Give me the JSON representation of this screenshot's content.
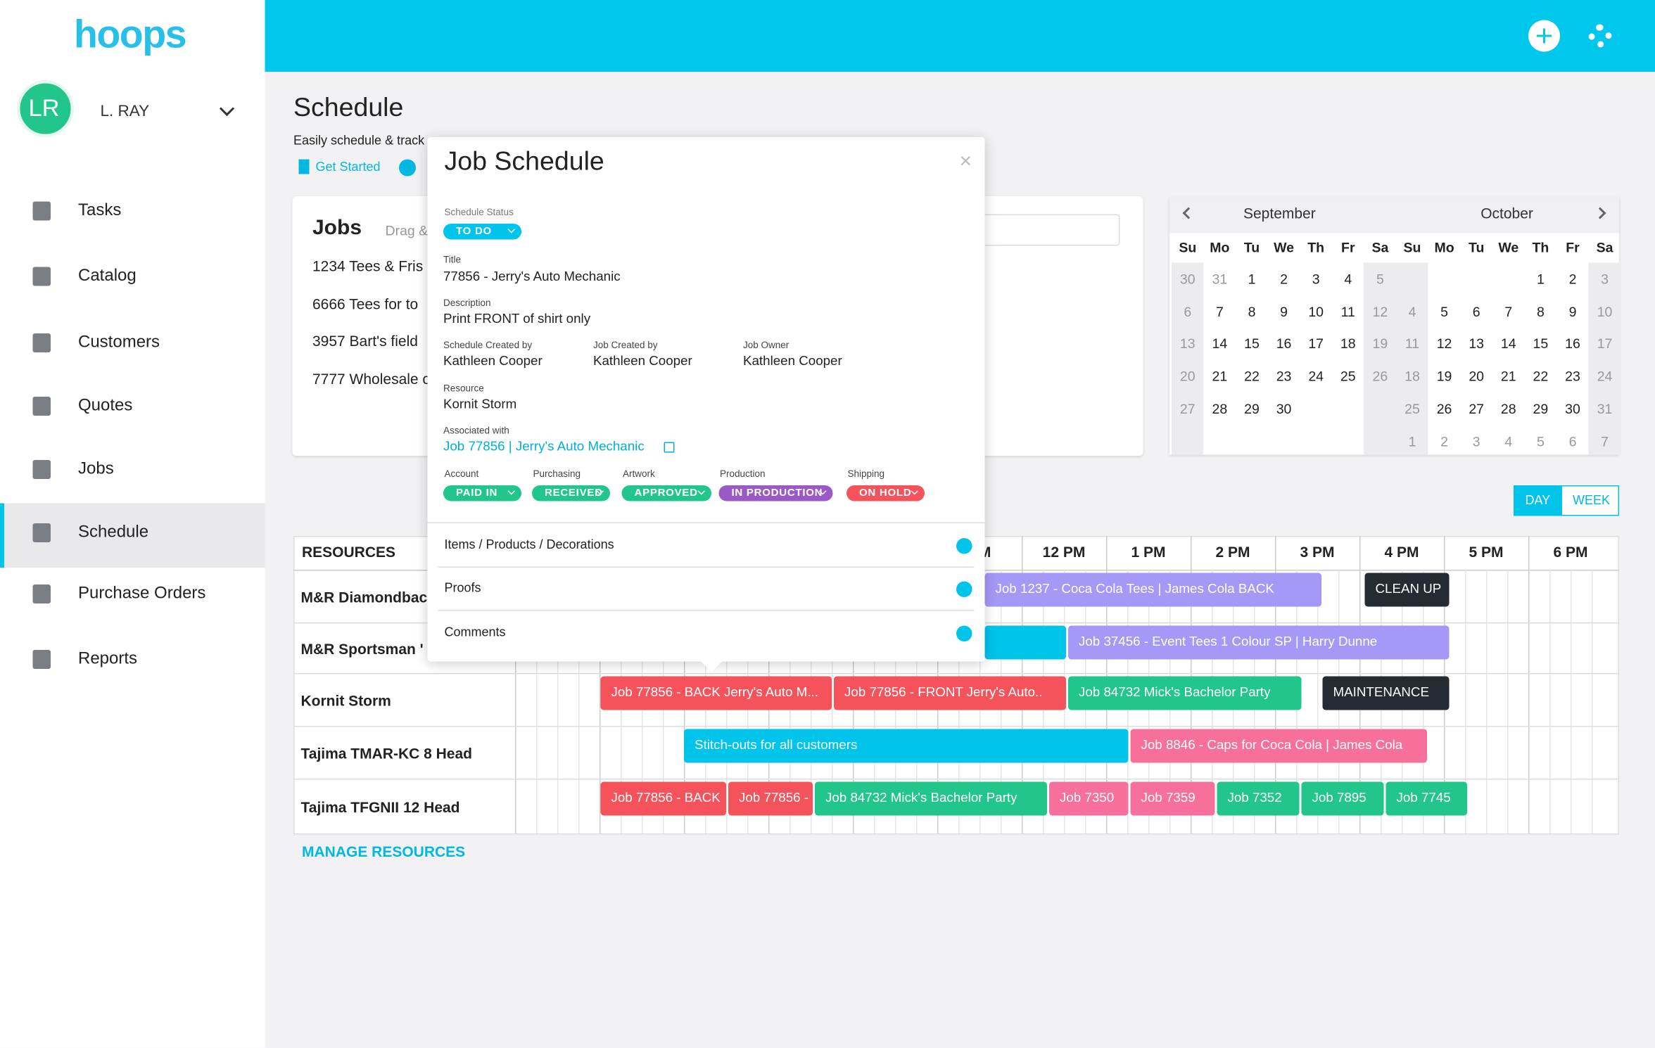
{
  "app": {
    "brand": "hoops",
    "user": {
      "initials": "LR",
      "name": "L. RAY"
    },
    "nav": [
      "Tasks",
      "Catalog",
      "Customers",
      "Quotes",
      "Jobs",
      "Schedule",
      "Purchase Orders",
      "Reports"
    ],
    "active_nav": 5
  },
  "page": {
    "title": "Schedule",
    "subtitle": "Easily schedule & track",
    "links": [
      "Get Started"
    ]
  },
  "jobs_panel": {
    "title": "Jobs",
    "hint": "Drag &",
    "items": [
      "1234 Tees & Fris",
      "6666 Tees for to",
      "3957 Bart's field",
      "7777 Wholesale c"
    ]
  },
  "calendar": {
    "months": [
      {
        "name": "September",
        "weekdays": [
          "Su",
          "Mo",
          "Tu",
          "We",
          "Th",
          "Fr",
          "Sa"
        ],
        "weeks": [
          [
            30,
            31,
            1,
            2,
            3,
            4,
            5
          ],
          [
            6,
            7,
            8,
            9,
            10,
            11,
            12
          ],
          [
            13,
            14,
            15,
            16,
            17,
            18,
            19
          ],
          [
            20,
            21,
            22,
            23,
            24,
            25,
            26
          ],
          [
            27,
            28,
            29,
            30,
            null,
            null,
            null
          ],
          [
            null,
            null,
            null,
            null,
            null,
            null,
            null
          ]
        ]
      },
      {
        "name": "October",
        "weekdays": [
          "Su",
          "Mo",
          "Tu",
          "We",
          "Th",
          "Fr",
          "Sa"
        ],
        "weeks": [
          [
            null,
            null,
            null,
            null,
            1,
            2,
            3
          ],
          [
            4,
            5,
            6,
            7,
            8,
            9,
            10
          ],
          [
            11,
            12,
            13,
            14,
            15,
            16,
            17
          ],
          [
            18,
            19,
            20,
            21,
            22,
            23,
            24
          ],
          [
            25,
            26,
            27,
            28,
            29,
            30,
            31
          ],
          [
            1,
            2,
            3,
            4,
            5,
            6,
            7
          ]
        ]
      }
    ]
  },
  "view_toggle": {
    "options": [
      "DAY",
      "WEEK"
    ],
    "active": 0
  },
  "scheduler": {
    "resources_header": "RESOURCES",
    "time_headers": [
      "AM",
      "12 PM",
      "1 PM",
      "2 PM",
      "3 PM",
      "4 PM",
      "5 PM",
      "6 PM"
    ],
    "resources": [
      {
        "name": "M&R Diamondbac",
        "events": [
          {
            "label": "Job 1237 - Coca Cola Tees | James Cola BACK",
            "color": "#a698f6"
          },
          {
            "label": "CLEAN UP",
            "color": "#262b33"
          }
        ]
      },
      {
        "name": "M&R Sportsman '",
        "events": [
          {
            "label": null,
            "color": "#00c4ea"
          },
          {
            "label": "Job 37456 - Event Tees 1 Colour SP | Harry Dunne",
            "color": "#a698f6"
          }
        ]
      },
      {
        "name": "Kornit Storm",
        "events": [
          {
            "label": "Job 77856 - BACK Jerry's Auto M...",
            "color": "#f4535b"
          },
          {
            "label": "Job 77856 - FRONT Jerry's Auto..",
            "color": "#f4535b"
          },
          {
            "label": "Job 84732 Mick's Bachelor Party",
            "color": "#22c68a"
          },
          {
            "label": "MAINTENANCE",
            "color": "#262b33"
          }
        ]
      },
      {
        "name": "Tajima TMAR-KC 8 Head",
        "events": [
          {
            "label": "Stitch-outs for all customers",
            "color": "#00c4ea"
          },
          {
            "label": "Job 8846 - Caps for Coca Cola | James Cola",
            "color": "#f7709c"
          }
        ]
      },
      {
        "name": "Tajima TFGNII 12 Head",
        "events": [
          {
            "label": "Job 77856 - BACK",
            "color": "#f4535b"
          },
          {
            "label": "Job 77856 -",
            "color": "#f4535b"
          },
          {
            "label": "Job 84732 Mick's Bachelor Party",
            "color": "#22c68a"
          },
          {
            "label": "Job 7350",
            "color": "#f7709c"
          },
          {
            "label": "Job 7359",
            "color": "#f7709c"
          },
          {
            "label": "Job 7352",
            "color": "#22c68a"
          },
          {
            "label": "Job 7895",
            "color": "#22c68a"
          },
          {
            "label": "Job 7745",
            "color": "#22c68a"
          }
        ]
      }
    ],
    "manage": "MANAGE RESOURCES"
  },
  "modal": {
    "title": "Job Schedule",
    "close": "×",
    "status_label": "Schedule Status",
    "status": "TO DO",
    "title_field": {
      "label": "Title",
      "value": "77856 - Jerry's Auto Mechanic"
    },
    "description": {
      "label": "Description",
      "value": "Print FRONT of shirt only"
    },
    "people": [
      {
        "label": "Schedule Created by",
        "value": "Kathleen Cooper"
      },
      {
        "label": "Job Created by",
        "value": "Kathleen Cooper"
      },
      {
        "label": "Job Owner",
        "value": "Kathleen Cooper"
      }
    ],
    "resource": {
      "label": "Resource",
      "value": "Kornit Storm"
    },
    "associated": {
      "label": "Associated with",
      "value": "Job 77856 | Jerry's Auto Mechanic"
    },
    "statuses": [
      {
        "label": "Account",
        "value": "PAID IN",
        "color": "#22c68a"
      },
      {
        "label": "Purchasing",
        "value": "RECEIVED",
        "color": "#22c68a"
      },
      {
        "label": "Artwork",
        "value": "APPROVED",
        "color": "#22c68a"
      },
      {
        "label": "Production",
        "value": "IN PRODUCTION",
        "color": "#9b59c6"
      },
      {
        "label": "Shipping",
        "value": "ON HOLD",
        "color": "#f4535b"
      }
    ],
    "sections": [
      "Items / Products / Decorations",
      "Proofs",
      "Comments"
    ]
  }
}
